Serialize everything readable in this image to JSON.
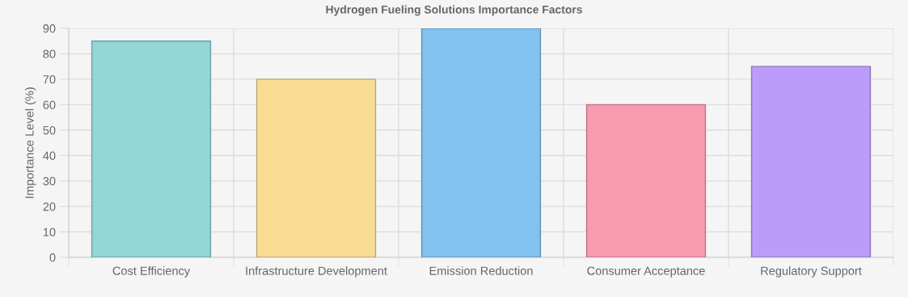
{
  "chart_data": {
    "type": "bar",
    "title": "Hydrogen Fueling Solutions Importance Factors",
    "ylabel": "Importance Level (%)",
    "categories": [
      "Cost Efficiency",
      "Infrastructure Development",
      "Emission Reduction",
      "Consumer Acceptance",
      "Regulatory Support"
    ],
    "values": [
      85,
      70,
      90,
      60,
      75
    ],
    "colors": [
      "#93d6d6",
      "#f8dc94",
      "#83c1ef",
      "#f99bae",
      "#bb9cfb"
    ],
    "ylim": [
      0,
      90
    ],
    "yticks": [
      0,
      10,
      20,
      30,
      40,
      50,
      60,
      70,
      80,
      90
    ],
    "grid": true,
    "legend": false
  }
}
